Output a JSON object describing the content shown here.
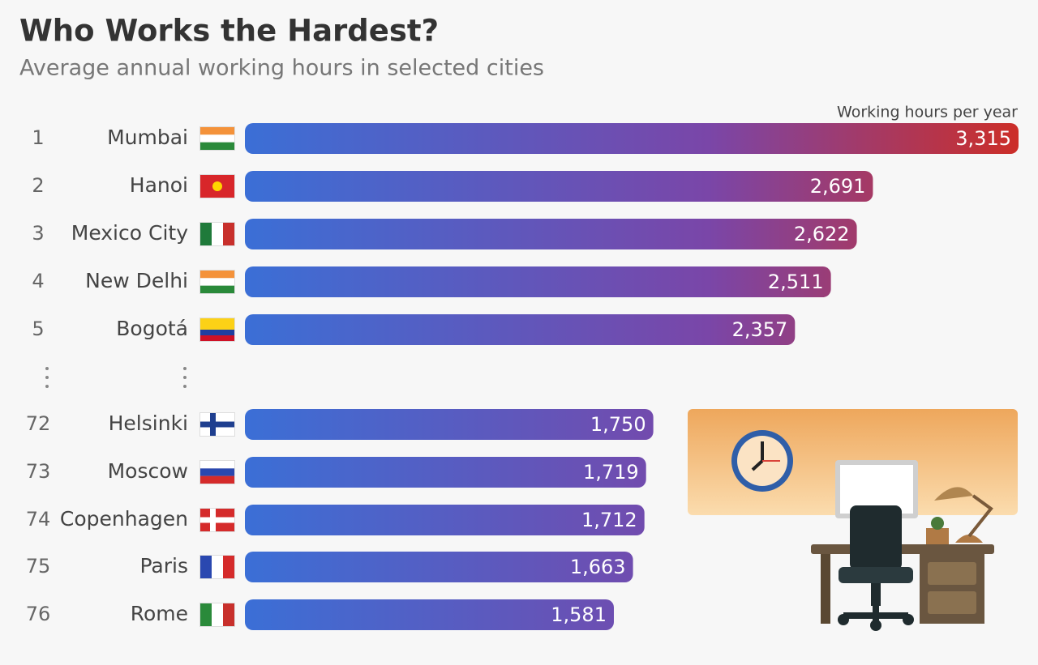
{
  "chart_data": {
    "type": "bar",
    "orientation": "horizontal",
    "title": "Who Works the Hardest?",
    "subtitle": "Average annual working hours in selected cities",
    "axis_label": "Working hours per year",
    "ranks": [
      1,
      2,
      3,
      4,
      5,
      72,
      73,
      74,
      75,
      76
    ],
    "categories": [
      "Mumbai",
      "Hanoi",
      "Mexico City",
      "New Delhi",
      "Bogotá",
      "Helsinki",
      "Moscow",
      "Copenhagen",
      "Paris",
      "Rome"
    ],
    "values": [
      3315,
      2691,
      2622,
      2511,
      2357,
      1750,
      1719,
      1712,
      1663,
      1581
    ],
    "value_labels": [
      "3,315",
      "2,691",
      "2,622",
      "2,511",
      "2,357",
      "1,750",
      "1,719",
      "1,712",
      "1,663",
      "1,581"
    ],
    "colors": [
      "#3b6fd6",
      "#7a46a8",
      "#cc2e28"
    ]
  }
}
